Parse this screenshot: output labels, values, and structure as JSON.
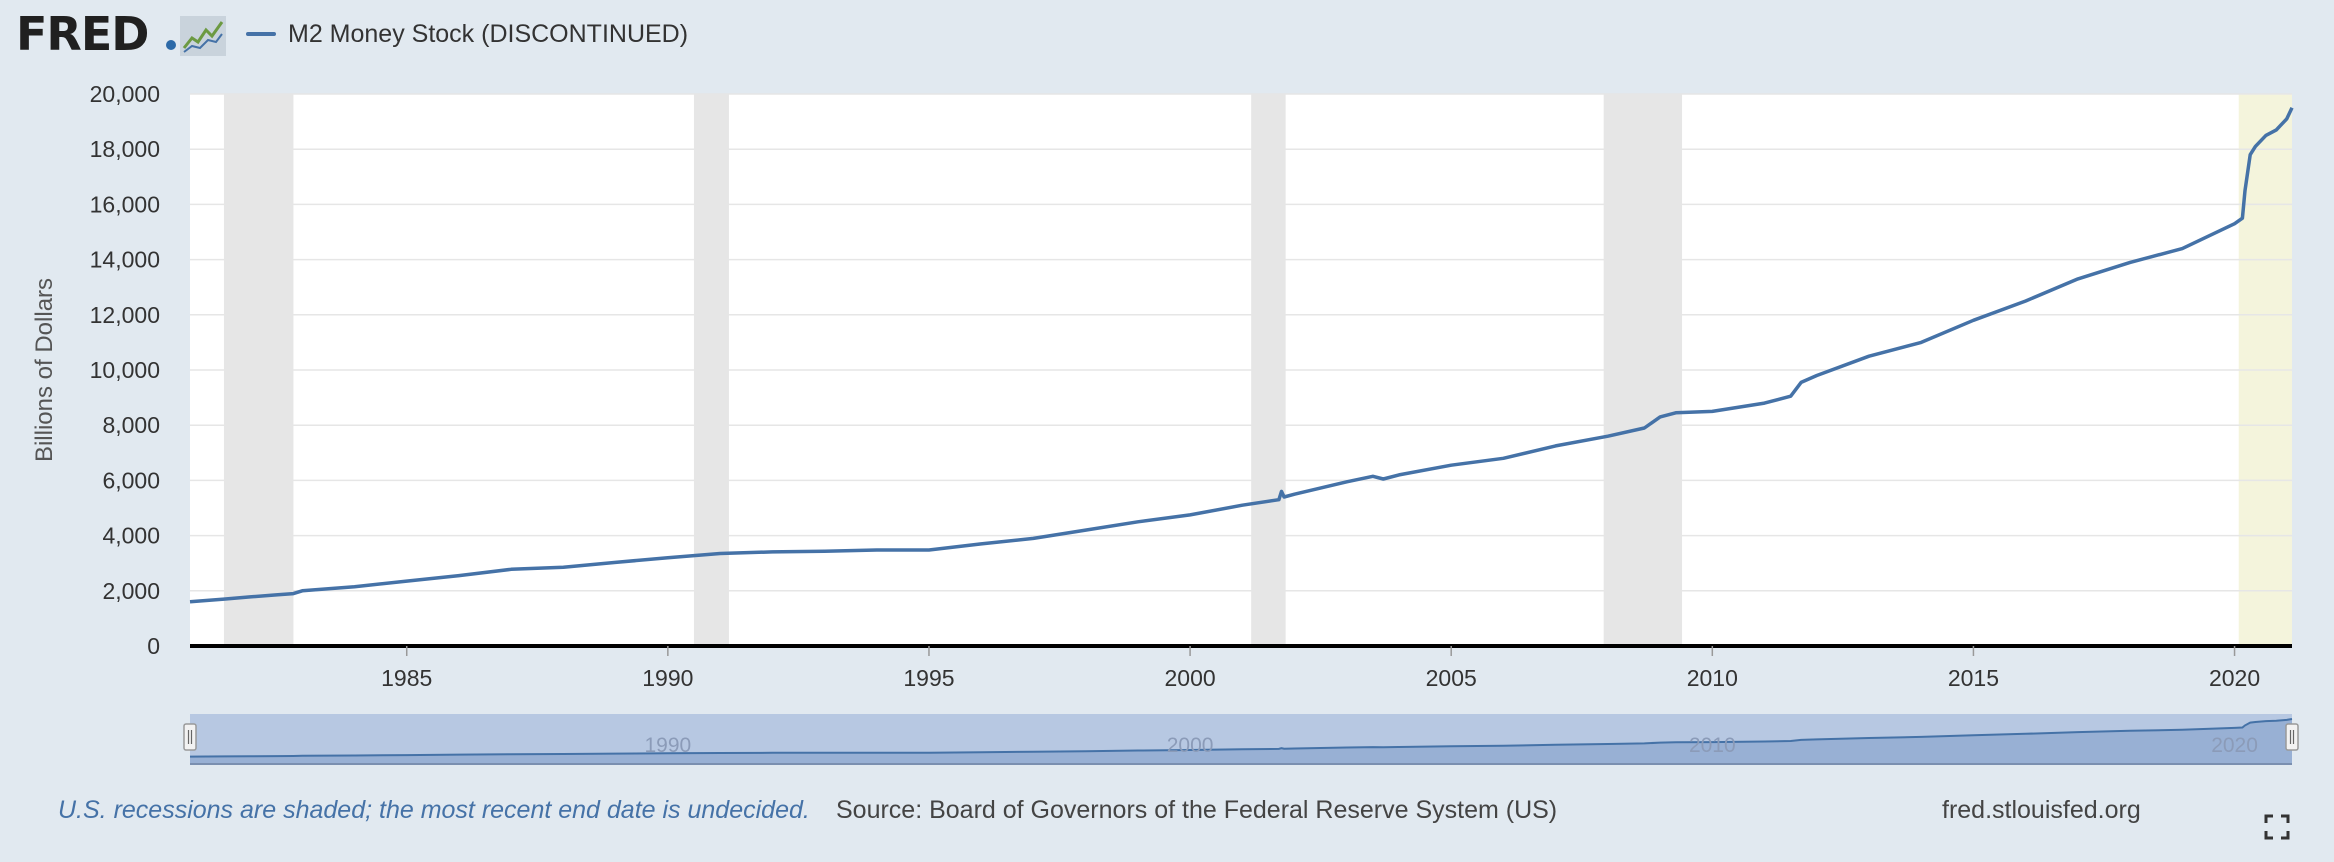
{
  "header": {
    "logo_text": "FRED",
    "legend_label": "M2 Money Stock (DISCONTINUED)"
  },
  "footer": {
    "note": "U.S. recessions are shaded; the most recent end date is undecided.",
    "source": "Source: Board of Governors of the Federal Reserve System (US)",
    "url": "fred.stlouisfed.org"
  },
  "navigator": {
    "tick_labels": [
      "1990",
      "2000",
      "2010",
      "2020"
    ],
    "tick_years": [
      1990,
      2000,
      2010,
      2020
    ]
  },
  "colors": {
    "series": "#4572a7",
    "recession": "#e6e6e6",
    "undecided_recession": "#f4f4dc",
    "background": "#e1e9f0"
  },
  "icons": [
    "graph-icon",
    "fullscreen-icon",
    "handle-icon"
  ],
  "chart_data": {
    "type": "line",
    "title": "",
    "xlabel": "",
    "ylabel": "Billions of Dollars",
    "ylim": [
      0,
      20000
    ],
    "xlim": [
      1980.85,
      2021.1
    ],
    "yticks": [
      0,
      2000,
      4000,
      6000,
      8000,
      10000,
      12000,
      14000,
      16000,
      18000,
      20000
    ],
    "ytick_labels": [
      "0",
      "2,000",
      "4,000",
      "6,000",
      "8,000",
      "10,000",
      "12,000",
      "14,000",
      "16,000",
      "18,000",
      "20,000"
    ],
    "xticks": [
      1985,
      1990,
      1995,
      2000,
      2005,
      2010,
      2015,
      2020
    ],
    "xtick_labels": [
      "1985",
      "1990",
      "1995",
      "2000",
      "2005",
      "2010",
      "2015",
      "2020"
    ],
    "grid": true,
    "recessions": [
      {
        "start": 1981.5,
        "end": 1982.83
      },
      {
        "start": 1990.5,
        "end": 1991.17
      },
      {
        "start": 2001.17,
        "end": 2001.83
      },
      {
        "start": 2007.92,
        "end": 2009.42
      }
    ],
    "undecided_recession": {
      "start": 2020.08,
      "end": 2021.1
    },
    "series": [
      {
        "name": "M2 Money Stock (DISCONTINUED)",
        "x": [
          1980.85,
          1981.5,
          1982.0,
          1982.5,
          1982.83,
          1983.0,
          1984.0,
          1985.0,
          1986.0,
          1987.0,
          1988.0,
          1989.0,
          1990.0,
          1991.0,
          1992.0,
          1993.0,
          1994.0,
          1995.0,
          1996.0,
          1997.0,
          1998.0,
          1999.0,
          2000.0,
          2001.0,
          2001.7,
          2001.75,
          2001.8,
          2002.0,
          2003.0,
          2003.5,
          2003.7,
          2004.0,
          2005.0,
          2006.0,
          2007.0,
          2008.0,
          2008.7,
          2009.0,
          2009.3,
          2010.0,
          2011.0,
          2011.5,
          2011.7,
          2012.0,
          2013.0,
          2014.0,
          2015.0,
          2016.0,
          2017.0,
          2018.0,
          2019.0,
          2020.0,
          2020.15,
          2020.2,
          2020.3,
          2020.4,
          2020.6,
          2020.8,
          2021.0,
          2021.1
        ],
        "values": [
          1600,
          1700,
          1780,
          1850,
          1900,
          2000,
          2150,
          2350,
          2550,
          2780,
          2850,
          3030,
          3200,
          3350,
          3410,
          3430,
          3480,
          3480,
          3700,
          3900,
          4200,
          4500,
          4750,
          5100,
          5300,
          5600,
          5400,
          5500,
          5950,
          6150,
          6050,
          6200,
          6550,
          6800,
          7250,
          7600,
          7900,
          8300,
          8450,
          8500,
          8800,
          9050,
          9550,
          9800,
          10500,
          11000,
          11800,
          12500,
          13300,
          13900,
          14400,
          15300,
          15500,
          16500,
          17800,
          18100,
          18500,
          18700,
          19100,
          19500
        ]
      }
    ]
  }
}
